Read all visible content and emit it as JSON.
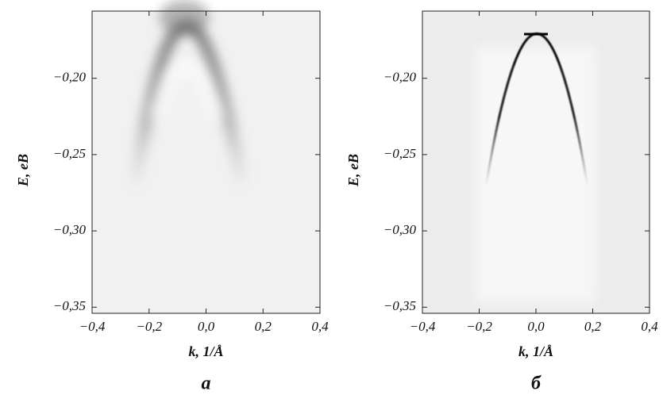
{
  "chart_data": [
    {
      "type": "image",
      "caption": "a",
      "xlabel": "k, 1/Å",
      "ylabel": "E, eB",
      "xlim": [
        -0.4,
        0.4
      ],
      "ylim": [
        -0.354,
        -0.156
      ],
      "xticks": [
        {
          "value": -0.4,
          "label": "−0,4"
        },
        {
          "value": -0.2,
          "label": "−0,2"
        },
        {
          "value": 0,
          "label": "0,0"
        },
        {
          "value": 0.2,
          "label": "0,2"
        },
        {
          "value": 0.4,
          "label": "0,4"
        }
      ],
      "yticks": [
        {
          "value": -0.2,
          "label": "−0,20"
        },
        {
          "value": -0.25,
          "label": "−0,25"
        },
        {
          "value": -0.3,
          "label": "−0,30"
        },
        {
          "value": -0.35,
          "label": "−0,35"
        }
      ]
    },
    {
      "type": "image",
      "caption": "б",
      "xlabel": "k, 1/Å",
      "ylabel": "E, eB",
      "xlim": [
        -0.4,
        0.4
      ],
      "ylim": [
        -0.354,
        -0.156
      ],
      "xticks": [
        {
          "value": -0.4,
          "label": "−0,4"
        },
        {
          "value": -0.2,
          "label": "−0,2"
        },
        {
          "value": 0,
          "label": "0,0"
        },
        {
          "value": 0.2,
          "label": "0,2"
        },
        {
          "value": 0.4,
          "label": "0,4"
        }
      ],
      "yticks": [
        {
          "value": -0.2,
          "label": "−0,20"
        },
        {
          "value": -0.25,
          "label": "−0,25"
        },
        {
          "value": -0.3,
          "label": "−0,30"
        },
        {
          "value": -0.35,
          "label": "−0,35"
        }
      ]
    }
  ]
}
